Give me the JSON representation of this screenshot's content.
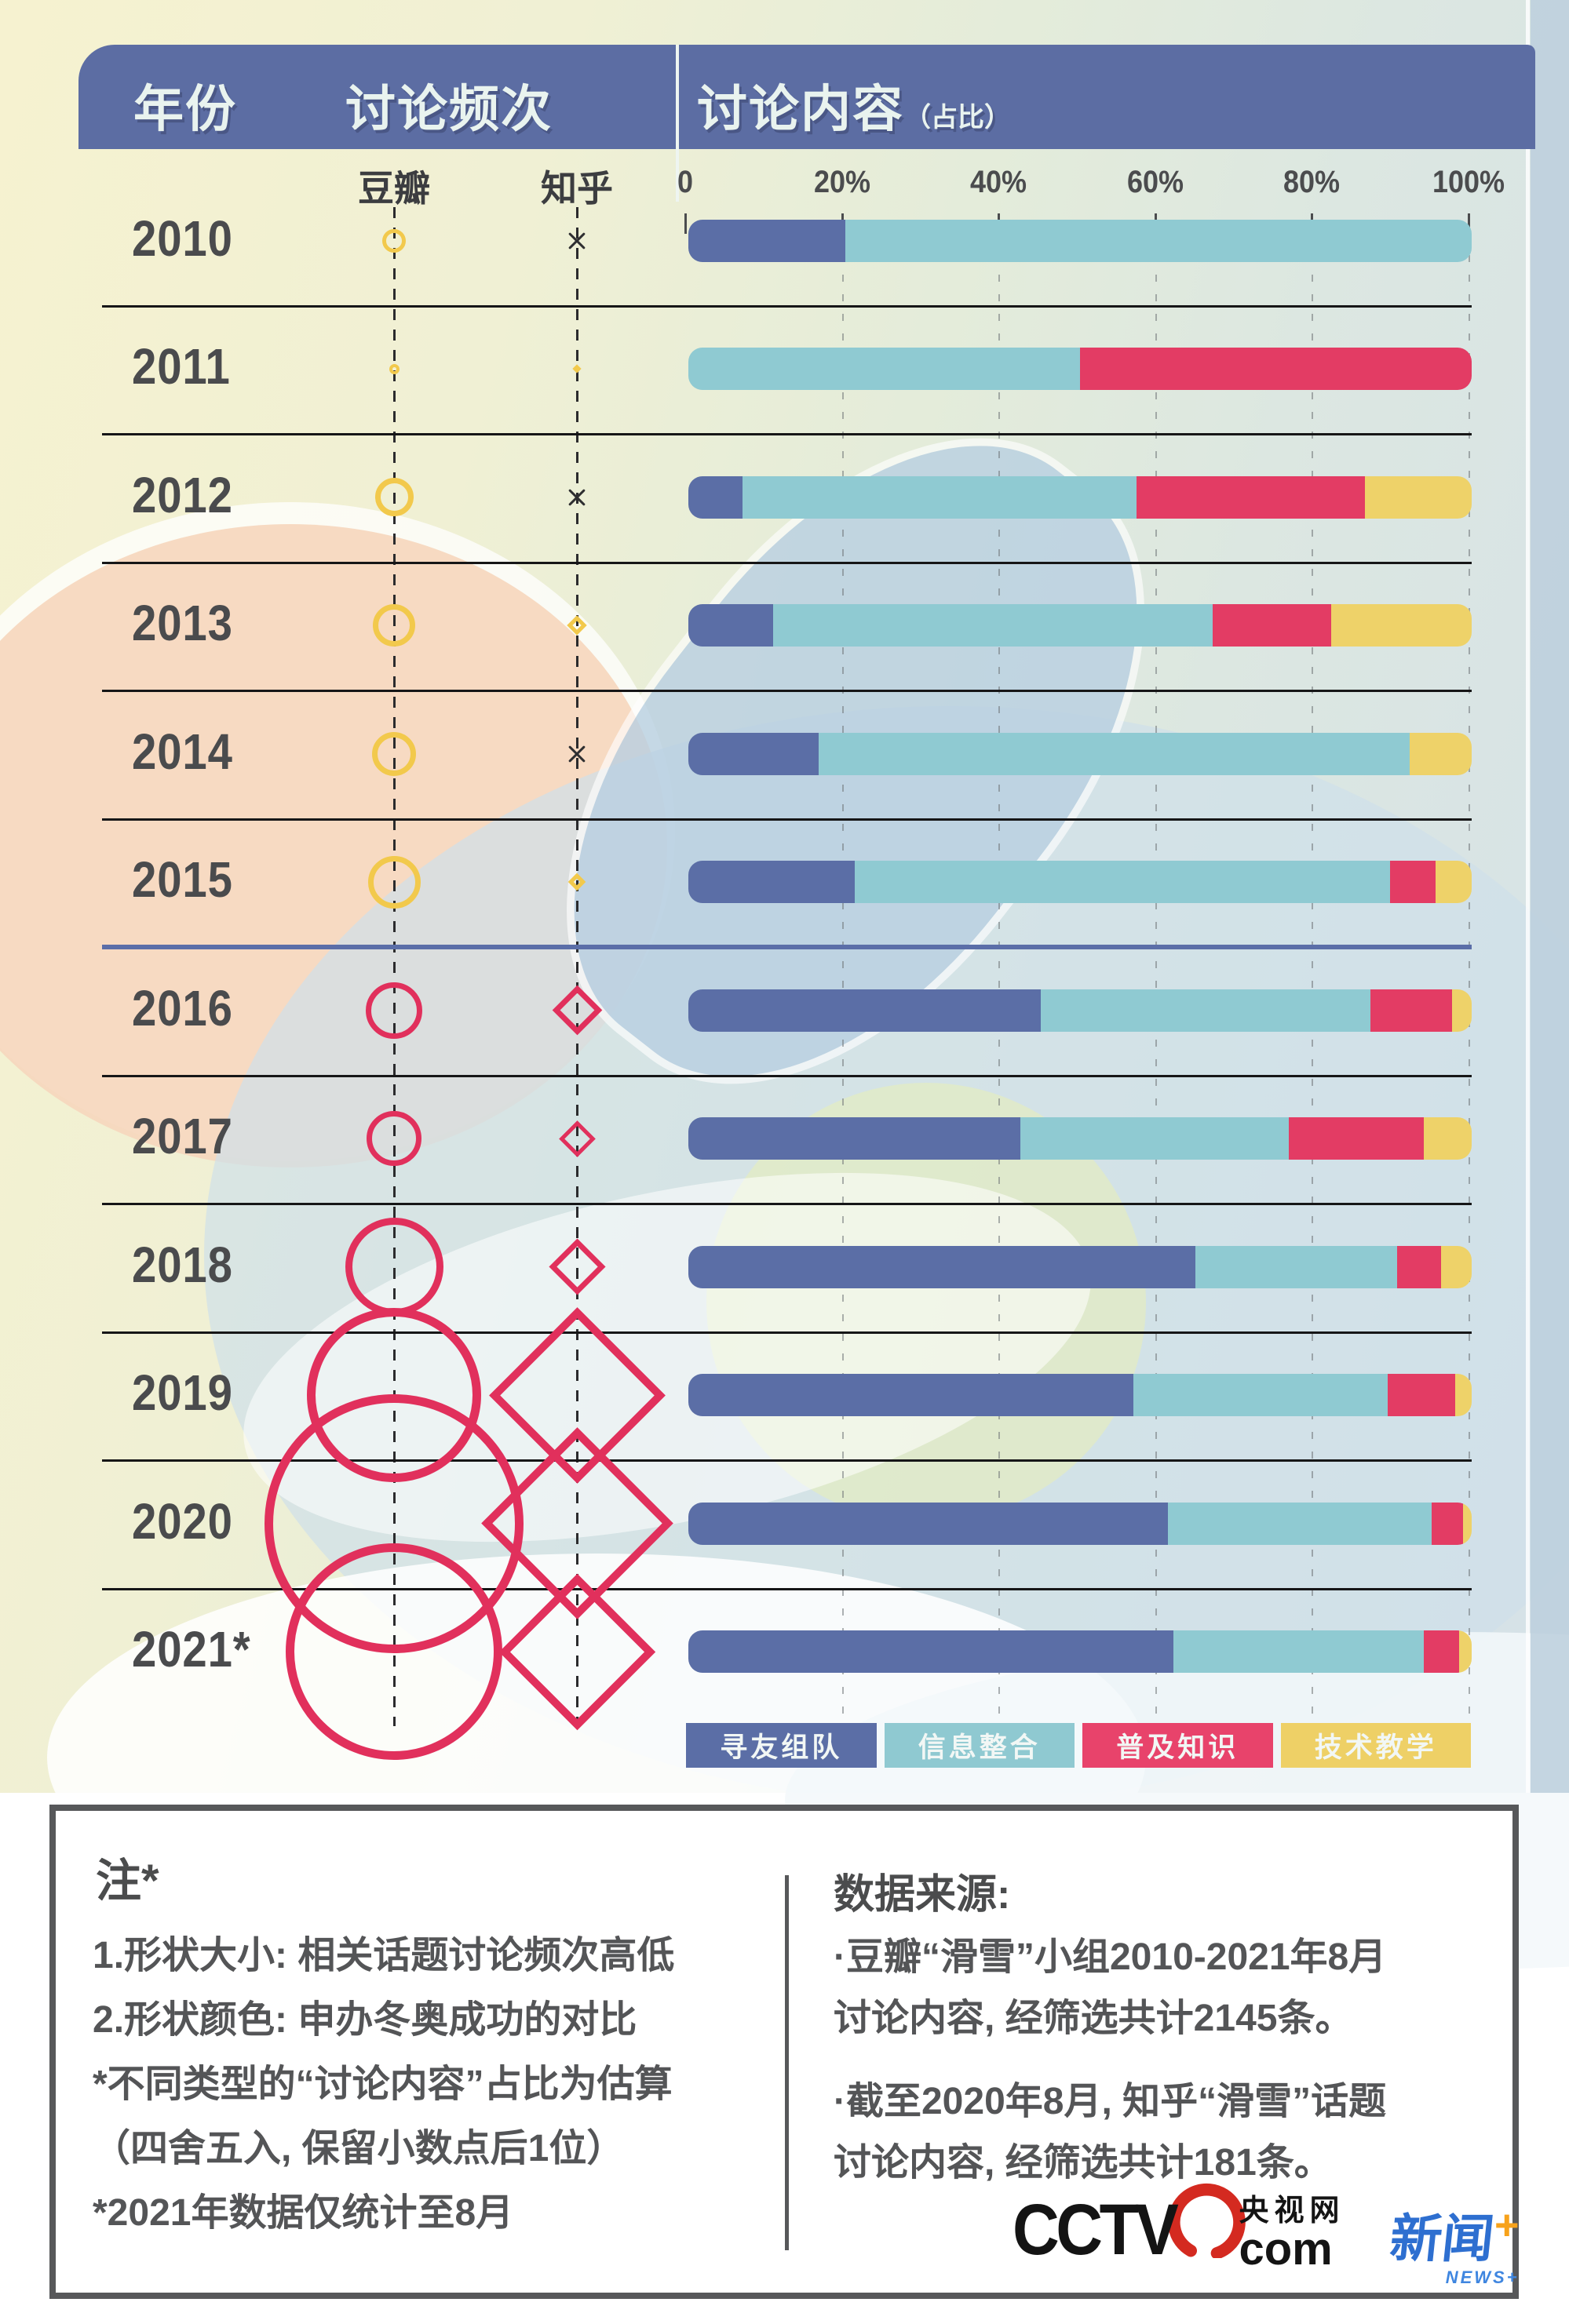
{
  "header": {
    "col_year": "年份",
    "col_freq": "讨论频次",
    "col_content": "讨论内容",
    "col_content_suffix": "（占比）"
  },
  "subheader": {
    "douban": "豆瓣",
    "zhihu": "知乎",
    "axis_ticks": [
      "0",
      "20%",
      "40%",
      "60%",
      "80%",
      "100%"
    ]
  },
  "legend": [
    {
      "label": "寻友组队",
      "color": "#5b6ea6"
    },
    {
      "label": "信息整合",
      "color": "#8fc9d1"
    },
    {
      "label": "普及知识",
      "color": "#e8436b"
    },
    {
      "label": "技术教学",
      "color": "#eed066"
    }
  ],
  "chart_data": {
    "type": "bar",
    "stacked": true,
    "orientation": "horizontal",
    "title": "讨论内容（占比）",
    "xlabel": "占比",
    "xlim": [
      0,
      100
    ],
    "grid": "dashed-vertical",
    "categories": [
      "2010",
      "2011",
      "2012",
      "2013",
      "2014",
      "2015",
      "2016",
      "2017",
      "2018",
      "2019",
      "2020",
      "2021*"
    ],
    "series": [
      {
        "name": "寻友组队",
        "color": "#5b6ea6",
        "values": [
          20.0,
          0,
          6.9,
          10.8,
          16.6,
          21.2,
          45.0,
          42.4,
          64.7,
          56.8,
          61.2,
          61.9
        ]
      },
      {
        "name": "信息整合",
        "color": "#8fcad2",
        "values": [
          80.0,
          50.0,
          50.3,
          56.1,
          75.5,
          68.4,
          42.1,
          34.3,
          25.8,
          32.5,
          33.7,
          32.0
        ]
      },
      {
        "name": "普及知识",
        "color": "#e33c64",
        "values": [
          0,
          50.0,
          29.2,
          15.2,
          0,
          5.8,
          10.4,
          17.2,
          5.6,
          8.6,
          4.0,
          4.5
        ]
      },
      {
        "name": "技术教学",
        "color": "#eed269",
        "values": [
          0,
          0,
          13.6,
          17.9,
          7.9,
          4.6,
          2.5,
          6.1,
          3.9,
          2.1,
          1.1,
          1.6
        ]
      }
    ],
    "markers": {
      "douban": {
        "label": "豆瓣",
        "shape": "circle",
        "sizes": [
          30,
          13,
          49,
          54,
          56,
          67,
          72,
          70,
          125,
          222,
          330,
          276
        ],
        "colors": [
          "gold",
          "gold",
          "gold",
          "gold",
          "gold",
          "gold",
          "pink",
          "pink",
          "pink",
          "pink",
          "pink",
          "pink"
        ]
      },
      "zhihu": {
        "label": "知乎",
        "shapes": [
          "cross",
          "diamond-dot",
          "cross",
          "diamond",
          "cross",
          "diamond",
          "diamond",
          "diamond",
          "diamond",
          "diamond",
          "diamond",
          "diamond"
        ],
        "sizes": [
          28,
          12,
          28,
          26,
          28,
          23,
          64,
          46,
          72,
          225,
          245,
          200
        ],
        "colors": [
          "black",
          "gold",
          "black",
          "gold",
          "black",
          "gold",
          "pink",
          "pink",
          "pink",
          "pink",
          "pink",
          "pink"
        ]
      }
    },
    "divider_after_index": 5,
    "divider_color": "#5b6ea8"
  },
  "notes": {
    "title": "注*",
    "lines": [
      "1.形状大小: 相关话题讨论频次高低",
      "2.形状颜色: 申办冬奥成功的对比",
      "*不同类型的“讨论内容”占比为估算",
      "（四舍五入, 保留小数点后1位）",
      "*2021年数据仅统计至8月"
    ]
  },
  "source": {
    "title": "数据来源:",
    "items": [
      {
        "line1": "·豆瓣“滑雪”小组2010-2021年8月",
        "line2": "讨论内容, 经筛选共计2145条。"
      },
      {
        "line1": "·截至2020年8月, 知乎“滑雪”话题",
        "line2": "讨论内容, 经筛选共计181条。"
      }
    ]
  },
  "logos": {
    "cctv_text": "CCTV",
    "cctv_cn": "央视网",
    "cctv_com": "com",
    "news_cn": "新闻",
    "news_plus": "+",
    "news_en": "NEWS+"
  },
  "colors": {
    "header_bg": "#5c6da3",
    "bar_blue": "#5b6ea6",
    "bar_teal": "#8fcad2",
    "bar_pink": "#e33c64",
    "bar_yellow": "#eed269",
    "marker_gold": "#f2c94c",
    "marker_pink": "#e1305c",
    "marker_black": "#2e2e30",
    "year_text": "#4a4b4d",
    "note_text": "#545557",
    "divider_blue": "#5b6ea8",
    "cctv_red": "#d42a20",
    "news_blue": "#2e6fd0",
    "news_orange": "#f7a21b"
  }
}
